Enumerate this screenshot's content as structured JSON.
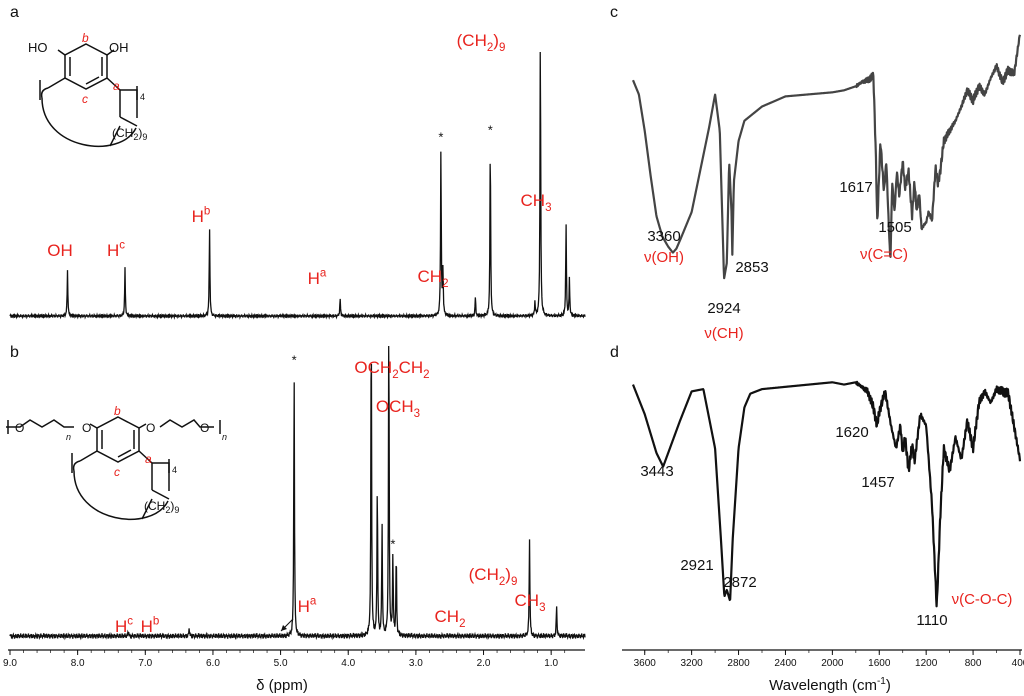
{
  "colors": {
    "label_red": "#e8231e",
    "spectrum": "#111111",
    "ir_c": "#444444"
  },
  "chart_data": [
    {
      "panel": "a",
      "type": "line",
      "kind": "1H NMR spectrum",
      "xlim": [
        9.0,
        0.5
      ],
      "peaks": [
        {
          "x": 8.15,
          "height": 0.26
        },
        {
          "x": 7.3,
          "height": 0.27
        },
        {
          "x": 6.05,
          "height": 0.51
        },
        {
          "x": 4.12,
          "height": 0.1
        },
        {
          "x": 2.63,
          "height": 0.97,
          "starred": true
        },
        {
          "x": 2.6,
          "height": 0.26
        },
        {
          "x": 2.12,
          "height": 0.11
        },
        {
          "x": 1.9,
          "height": 1.01,
          "starred": true
        },
        {
          "x": 1.24,
          "height": 0.08
        },
        {
          "x": 1.16,
          "height": 1.65
        },
        {
          "x": 0.78,
          "height": 0.53
        },
        {
          "x": 0.73,
          "height": 0.21
        }
      ],
      "peak_labels": [
        {
          "x": 8.15,
          "text": "OH"
        },
        {
          "x": 7.3,
          "text": "H",
          "sup": "c"
        },
        {
          "x": 6.05,
          "text": "H",
          "sup": "b"
        },
        {
          "x": 4.12,
          "text": "H",
          "sup": "a"
        },
        {
          "x": 2.12,
          "text": "CH",
          "sub": "2"
        },
        {
          "x": 1.16,
          "text": "(CH",
          "sub": "2",
          "tail": ")",
          "sub2": "9"
        },
        {
          "x": 0.76,
          "text": "CH",
          "sub": "3"
        }
      ],
      "star_symbol": "*",
      "structure": {
        "sites": [
          "a",
          "b",
          "c"
        ],
        "subscript": "4",
        "groups": [
          "HO",
          "OH"
        ],
        "chain": "(CH",
        "chain_sub": "2",
        "chain_tail": ")",
        "chain_sub2": "9"
      }
    },
    {
      "panel": "b",
      "type": "line",
      "kind": "1H NMR spectrum",
      "xlim": [
        9.0,
        0.5
      ],
      "xlabel": "δ (ppm)",
      "xticks": [
        "9.0",
        "8.0",
        "7.0",
        "6.0",
        "5.0",
        "4.0",
        "3.0",
        "2.0",
        "1.0"
      ],
      "peaks": [
        {
          "x": 7.25,
          "height": 0.02
        },
        {
          "x": 6.35,
          "height": 0.03
        },
        {
          "x": 4.8,
          "height": 0.97,
          "starred": true
        },
        {
          "x": 3.66,
          "height": 1.2
        },
        {
          "x": 3.57,
          "height": 0.56
        },
        {
          "x": 3.5,
          "height": 0.4
        },
        {
          "x": 3.4,
          "height": 1.2
        },
        {
          "x": 3.34,
          "height": 0.3,
          "starred": true
        },
        {
          "x": 3.29,
          "height": 0.3
        },
        {
          "x": 1.32,
          "height": 0.36
        },
        {
          "x": 0.92,
          "height": 0.11
        }
      ],
      "peak_labels": [
        {
          "x": 7.25,
          "text": "H",
          "sup": "c"
        },
        {
          "x": 6.35,
          "text": "H",
          "sup": "b"
        },
        {
          "x": 4.7,
          "text": "H",
          "sup": "a"
        },
        {
          "x": 3.62,
          "text": "OCH",
          "sub": "2",
          "text2": "CH",
          "sub2": "2"
        },
        {
          "x": 3.35,
          "text": "OCH",
          "sub": "3"
        },
        {
          "x": 2.0,
          "text": "CH",
          "sub": "2"
        },
        {
          "x": 1.32,
          "text": "(CH",
          "sub": "2",
          "tail": ")",
          "sub2": "9"
        },
        {
          "x": 0.92,
          "text": "CH",
          "sub": "3"
        }
      ],
      "star_symbol": "*",
      "structure": {
        "sites": [
          "a",
          "b",
          "c"
        ],
        "subscript": "4",
        "repeat": "n",
        "atom": "O",
        "chain": "(CH",
        "chain_sub": "2",
        "chain_tail": ")",
        "chain_sub2": "9"
      }
    },
    {
      "panel": "c",
      "type": "line",
      "kind": "IR spectrum",
      "xlim": [
        3700,
        400
      ],
      "x": [
        3700,
        3650,
        3600,
        3550,
        3500,
        3450,
        3400,
        3360,
        3330,
        3300,
        3200,
        3100,
        3050,
        3000,
        2960,
        2930,
        2924,
        2900,
        2880,
        2860,
        2853,
        2840,
        2800,
        2750,
        2600,
        2400,
        2200,
        2000,
        1900,
        1800,
        1750,
        1700,
        1650,
        1630,
        1617,
        1600,
        1590,
        1560,
        1540,
        1520,
        1505,
        1490,
        1470,
        1450,
        1430,
        1400,
        1380,
        1350,
        1320,
        1300,
        1280,
        1260,
        1240,
        1200,
        1180,
        1150,
        1120,
        1100,
        1080,
        1050,
        1000,
        950,
        900,
        850,
        800,
        750,
        700,
        650,
        600,
        550,
        500,
        450,
        400
      ],
      "y": [
        0.05,
        0.12,
        0.3,
        0.52,
        0.72,
        0.82,
        0.87,
        0.9,
        0.88,
        0.84,
        0.7,
        0.42,
        0.28,
        0.12,
        0.3,
        0.9,
        1.03,
        0.95,
        0.45,
        0.7,
        0.91,
        0.55,
        0.35,
        0.25,
        0.18,
        0.13,
        0.12,
        0.11,
        0.1,
        0.08,
        0.06,
        0.05,
        0.03,
        0.4,
        0.76,
        0.5,
        0.35,
        0.6,
        0.45,
        0.75,
        0.95,
        0.55,
        0.7,
        0.5,
        0.62,
        0.45,
        0.58,
        0.5,
        0.72,
        0.55,
        0.7,
        0.6,
        0.78,
        0.75,
        0.7,
        0.74,
        0.48,
        0.56,
        0.5,
        0.35,
        0.3,
        0.25,
        0.18,
        0.1,
        0.15,
        0.08,
        0.12,
        0.04,
        -0.02,
        0.06,
        0.0,
        0.02,
        -0.18
      ],
      "annotations": [
        {
          "x": 3360,
          "text": "3360"
        },
        {
          "x": 3360,
          "text": "ν(OH)",
          "red": true
        },
        {
          "x": 2853,
          "text": "2853"
        },
        {
          "x": 2924,
          "text": "2924"
        },
        {
          "x": 2924,
          "text": "ν(CH)",
          "red": true
        },
        {
          "x": 1617,
          "text": "1617"
        },
        {
          "x": 1505,
          "text": "1505"
        },
        {
          "x": 1560,
          "text": "ν(C=C)",
          "red": true
        }
      ]
    },
    {
      "panel": "d",
      "type": "line",
      "kind": "IR spectrum",
      "xlim": [
        3700,
        400
      ],
      "xlabel": "Wavelength (cm",
      "xlabel_sup": "-1",
      "xlabel_tail": ")",
      "xticks": [
        3600,
        3200,
        2800,
        2400,
        2000,
        1600,
        1200,
        800,
        400
      ],
      "x": [
        3700,
        3600,
        3500,
        3443,
        3400,
        3300,
        3200,
        3100,
        3000,
        2950,
        2921,
        2900,
        2872,
        2850,
        2800,
        2750,
        2700,
        2600,
        2400,
        2200,
        2000,
        1900,
        1800,
        1700,
        1650,
        1620,
        1600,
        1550,
        1500,
        1457,
        1420,
        1400,
        1380,
        1350,
        1320,
        1300,
        1250,
        1200,
        1150,
        1110,
        1080,
        1050,
        1000,
        950,
        900,
        850,
        800,
        750,
        700,
        650,
        600,
        500,
        400
      ],
      "y": [
        0.02,
        0.15,
        0.32,
        0.38,
        0.32,
        0.18,
        0.05,
        0.04,
        0.3,
        0.7,
        0.95,
        0.92,
        0.97,
        0.7,
        0.3,
        0.12,
        0.06,
        0.04,
        0.03,
        0.02,
        0.01,
        0.02,
        0.01,
        0.05,
        0.12,
        0.2,
        0.14,
        0.05,
        0.2,
        0.3,
        0.2,
        0.32,
        0.25,
        0.4,
        0.28,
        0.36,
        0.15,
        0.2,
        0.55,
        1.0,
        0.6,
        0.3,
        0.4,
        0.25,
        0.35,
        0.18,
        0.3,
        0.1,
        0.05,
        0.1,
        0.04,
        0.06,
        0.35
      ],
      "annotations": [
        {
          "x": 3443,
          "text": "3443"
        },
        {
          "x": 2921,
          "text": "2921"
        },
        {
          "x": 2872,
          "text": "2872"
        },
        {
          "x": 1620,
          "text": "1620"
        },
        {
          "x": 1457,
          "text": "1457"
        },
        {
          "x": 1110,
          "text": "1110"
        },
        {
          "x": 1110,
          "text": "ν(C-O-C)",
          "red": true
        }
      ]
    }
  ]
}
